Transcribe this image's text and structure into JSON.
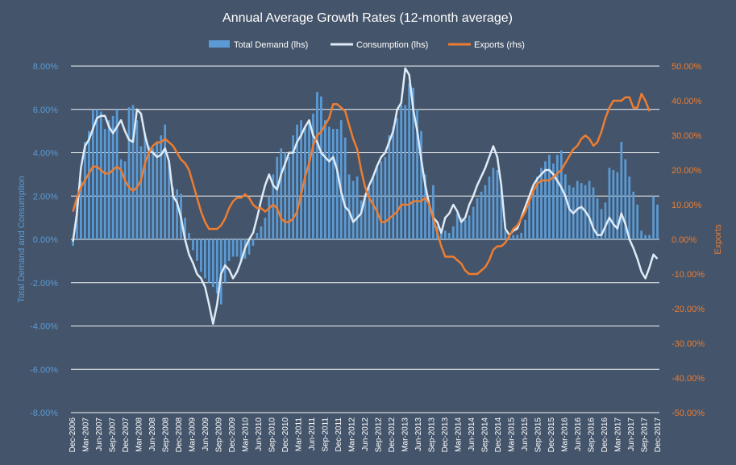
{
  "chart_data": {
    "type": "bar",
    "title": "Annual Average Growth Rates (12-month average)",
    "ylabel_left": "Total Demand and Consumption",
    "ylabel_right": "Exports",
    "ylim_left": [
      -0.08,
      0.08
    ],
    "ylim_right": [
      -0.5,
      0.5
    ],
    "yticks_left": [
      "8.00%",
      "6.00%",
      "4.00%",
      "2.00%",
      "0.00%",
      "-2.00%",
      "-4.00%",
      "-6.00%",
      "-8.00%"
    ],
    "yticks_right": [
      "50.00%",
      "40.00%",
      "30.00%",
      "20.00%",
      "10.00%",
      "0.00%",
      "-10.00%",
      "-20.00%",
      "-30.00%",
      "-40.00%",
      "-50.00%"
    ],
    "xtick_labels": [
      "Dec-2006",
      "Mar-2007",
      "Jun-2007",
      "Sep-2007",
      "Dec-2007",
      "Mar-2008",
      "Jun-2008",
      "Sep-2008",
      "Dec-2008",
      "Mar-2009",
      "Jun-2009",
      "Sep-2009",
      "Dec-2009",
      "Mar-2010",
      "Jun-2010",
      "Sep-2010",
      "Dec-2010",
      "Mar-2011",
      "Jun-2011",
      "Sep-2011",
      "Dec-2011",
      "Mar-2012",
      "Jun-2012",
      "Sep-2012",
      "Dec-2012",
      "Mar-2013",
      "Jun-2013",
      "Sep-2013",
      "Dec-2013",
      "Mar-2014",
      "Jun-2014",
      "Sep-2014",
      "Dec-2014",
      "Mar-2015",
      "Jun-2015",
      "Sep-2015",
      "Dec-2015",
      "Mar-2016",
      "Jun-2016",
      "Sep-2016",
      "Dec-2016",
      "Mar-2017",
      "Jun-2017",
      "Sep-2017",
      "Dec-2017"
    ],
    "legend_position": "top",
    "grid": true,
    "colors": {
      "background": "#44546A",
      "bars": "#5B9BD5",
      "consumption": "#DEEBF7",
      "exports": "#ED7D31",
      "grid": "#FFFFFF"
    },
    "series": [
      {
        "name": "Total Demand (lhs)",
        "type": "bar",
        "axis": "left",
        "values": [
          -0.003,
          0.017,
          0.027,
          0.045,
          0.05,
          0.06,
          0.06,
          0.059,
          0.051,
          0.055,
          0.057,
          0.06,
          0.037,
          0.036,
          0.061,
          0.062,
          0.055,
          0.043,
          0.049,
          0.043,
          0.042,
          0.045,
          0.048,
          0.053,
          0.036,
          0.024,
          0.023,
          0.021,
          0.01,
          0.003,
          -0.005,
          -0.01,
          -0.015,
          -0.018,
          -0.02,
          -0.022,
          -0.025,
          -0.03,
          -0.02,
          -0.01,
          -0.008,
          -0.008,
          -0.01,
          -0.009,
          -0.007,
          -0.003,
          0.003,
          0.006,
          0.01,
          0.02,
          0.03,
          0.038,
          0.042,
          0.04,
          0.038,
          0.048,
          0.053,
          0.055,
          0.052,
          0.055,
          0.058,
          0.068,
          0.066,
          0.055,
          0.052,
          0.051,
          0.051,
          0.055,
          0.047,
          0.03,
          0.027,
          0.029,
          0.018,
          0.02,
          0.024,
          0.029,
          0.034,
          0.036,
          0.038,
          0.048,
          0.052,
          0.056,
          0.062,
          0.062,
          0.072,
          0.07,
          0.06,
          0.05,
          0.03,
          0.016,
          0.025,
          0.006,
          0.005,
          0.004,
          0.003,
          0.006,
          0.012,
          0.01,
          0.009,
          0.011,
          0.015,
          0.019,
          0.022,
          0.025,
          0.029,
          0.033,
          0.032,
          0.025,
          0.004,
          0.002,
          0.002,
          0.002,
          0.003,
          0.009,
          0.018,
          0.023,
          0.029,
          0.033,
          0.036,
          0.039,
          0.035,
          0.039,
          0.041,
          0.03,
          0.025,
          0.024,
          0.027,
          0.026,
          0.025,
          0.027,
          0.024,
          0.019,
          0.014,
          0.017,
          0.033,
          0.032,
          0.031,
          0.045,
          0.037,
          0.029,
          0.022,
          0.016,
          0.004,
          0.002,
          0.002,
          0.02,
          0.016
        ]
      },
      {
        "name": "Consumption (lhs)",
        "type": "line",
        "axis": "left",
        "values": [
          -0.001,
          0.012,
          0.033,
          0.043,
          0.046,
          0.051,
          0.056,
          0.057,
          0.057,
          0.052,
          0.049,
          0.052,
          0.055,
          0.05,
          0.046,
          0.045,
          0.06,
          0.058,
          0.048,
          0.041,
          0.04,
          0.038,
          0.039,
          0.042,
          0.036,
          0.02,
          0.017,
          0.01,
          0.0,
          -0.007,
          -0.011,
          -0.016,
          -0.018,
          -0.022,
          -0.03,
          -0.039,
          -0.03,
          -0.016,
          -0.012,
          -0.014,
          -0.018,
          -0.015,
          -0.01,
          -0.004,
          0.0,
          0.003,
          0.01,
          0.018,
          0.025,
          0.03,
          0.025,
          0.023,
          0.03,
          0.035,
          0.04,
          0.04,
          0.045,
          0.048,
          0.052,
          0.055,
          0.048,
          0.045,
          0.04,
          0.038,
          0.036,
          0.038,
          0.032,
          0.022,
          0.015,
          0.013,
          0.008,
          0.01,
          0.012,
          0.02,
          0.025,
          0.029,
          0.034,
          0.038,
          0.04,
          0.045,
          0.05,
          0.06,
          0.063,
          0.079,
          0.076,
          0.06,
          0.05,
          0.037,
          0.025,
          0.016,
          0.01,
          0.008,
          0.003,
          0.01,
          0.012,
          0.016,
          0.013,
          0.008,
          0.01,
          0.016,
          0.02,
          0.025,
          0.029,
          0.033,
          0.038,
          0.043,
          0.038,
          0.025,
          0.005,
          0.002,
          0.004,
          0.005,
          0.01,
          0.015,
          0.02,
          0.025,
          0.028,
          0.03,
          0.032,
          0.032,
          0.03,
          0.027,
          0.024,
          0.02,
          0.014,
          0.012,
          0.014,
          0.015,
          0.013,
          0.01,
          0.005,
          0.002,
          0.002,
          0.006,
          0.01,
          0.007,
          0.005,
          0.012,
          0.007,
          0.0,
          -0.004,
          -0.009,
          -0.015,
          -0.018,
          -0.013,
          -0.007,
          -0.009
        ]
      },
      {
        "name": "Exports (rhs)",
        "type": "line",
        "axis": "right",
        "values": [
          0.08,
          0.12,
          0.15,
          0.17,
          0.19,
          0.21,
          0.21,
          0.2,
          0.19,
          0.19,
          0.2,
          0.21,
          0.2,
          0.17,
          0.15,
          0.14,
          0.15,
          0.17,
          0.22,
          0.25,
          0.27,
          0.28,
          0.28,
          0.29,
          0.28,
          0.27,
          0.25,
          0.23,
          0.22,
          0.2,
          0.16,
          0.12,
          0.08,
          0.05,
          0.03,
          0.03,
          0.03,
          0.04,
          0.06,
          0.09,
          0.11,
          0.12,
          0.12,
          0.13,
          0.12,
          0.1,
          0.09,
          0.09,
          0.08,
          0.09,
          0.1,
          0.09,
          0.06,
          0.05,
          0.05,
          0.06,
          0.08,
          0.13,
          0.18,
          0.22,
          0.27,
          0.3,
          0.31,
          0.33,
          0.35,
          0.39,
          0.39,
          0.38,
          0.37,
          0.33,
          0.29,
          0.26,
          0.2,
          0.15,
          0.12,
          0.1,
          0.08,
          0.05,
          0.05,
          0.06,
          0.07,
          0.08,
          0.1,
          0.1,
          0.1,
          0.11,
          0.11,
          0.11,
          0.12,
          0.1,
          0.06,
          0.02,
          -0.02,
          -0.05,
          -0.05,
          -0.05,
          -0.06,
          -0.07,
          -0.09,
          -0.1,
          -0.1,
          -0.1,
          -0.09,
          -0.08,
          -0.06,
          -0.03,
          -0.02,
          -0.02,
          -0.01,
          0.01,
          0.03,
          0.04,
          0.06,
          0.08,
          0.11,
          0.14,
          0.16,
          0.17,
          0.17,
          0.17,
          0.18,
          0.19,
          0.2,
          0.22,
          0.24,
          0.26,
          0.27,
          0.29,
          0.3,
          0.29,
          0.27,
          0.28,
          0.31,
          0.35,
          0.38,
          0.4,
          0.4,
          0.4,
          0.41,
          0.41,
          0.38,
          0.38,
          0.42,
          0.4,
          0.37
        ]
      }
    ]
  }
}
